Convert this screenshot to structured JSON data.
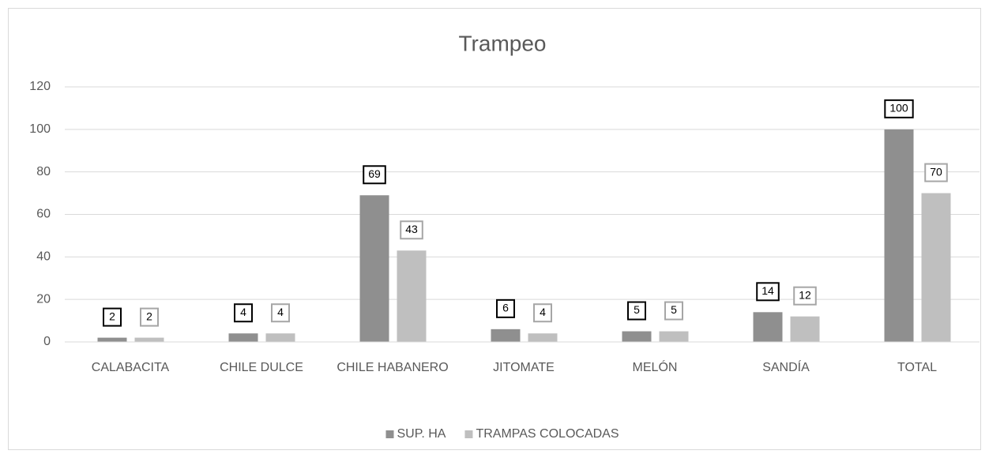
{
  "chart_data": {
    "type": "bar",
    "title": "Trampeo",
    "categories": [
      "CALABACITA",
      "CHILE DULCE",
      "CHILE HABANERO",
      "JITOMATE",
      "MELÓN",
      "SANDÍA",
      "TOTAL"
    ],
    "series": [
      {
        "name": "SUP. HA",
        "color": "#8f8f8f",
        "values": [
          2,
          4,
          69,
          6,
          5,
          14,
          100
        ]
      },
      {
        "name": "TRAMPAS COLOCADAS",
        "color": "#bfbfbf",
        "values": [
          2,
          4,
          43,
          4,
          5,
          12,
          70
        ]
      }
    ],
    "ylim": [
      0,
      120
    ],
    "yticks": [
      0,
      20,
      40,
      60,
      80,
      100,
      120
    ],
    "grid": true,
    "legend": "bottom"
  }
}
